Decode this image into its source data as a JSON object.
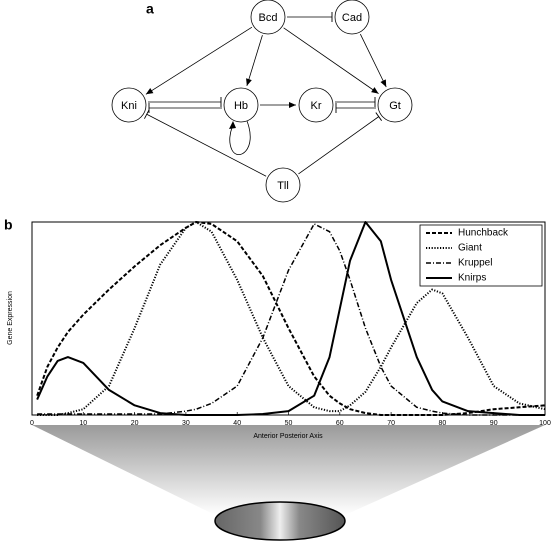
{
  "diagram": {
    "label": "a",
    "nodes": [
      {
        "label": "Bcd"
      },
      {
        "label": "Cad"
      },
      {
        "label": "Kni"
      },
      {
        "label": "Hb"
      },
      {
        "label": "Kr"
      },
      {
        "label": "Gt"
      },
      {
        "label": "Tll"
      }
    ]
  },
  "chart_data": {
    "type": "line",
    "panel_label": "b",
    "x_label": "Anterior Posterior Axis",
    "y_label": "Gene Expression",
    "x": [
      1,
      3,
      5,
      7,
      10,
      15,
      20,
      25,
      30,
      32,
      35,
      40,
      45,
      50,
      55,
      58,
      60,
      62,
      65,
      68,
      70,
      75,
      78,
      80,
      85,
      90,
      95,
      100
    ],
    "series": [
      {
        "name": "Hunchback",
        "color": "#000000",
        "linestyle": "dashed",
        "values": [
          0.1,
          0.25,
          0.35,
          0.43,
          0.52,
          0.65,
          0.77,
          0.88,
          0.97,
          1.0,
          0.99,
          0.9,
          0.72,
          0.45,
          0.2,
          0.1,
          0.06,
          0.03,
          0.01,
          0,
          0,
          0,
          0,
          0,
          0.01,
          0.03,
          0.04,
          0.05
        ]
      },
      {
        "name": "Giant",
        "color": "#000000",
        "linestyle": "dotted",
        "values": [
          0,
          0,
          0,
          0.01,
          0.03,
          0.15,
          0.45,
          0.78,
          0.97,
          1.0,
          0.95,
          0.7,
          0.4,
          0.15,
          0.04,
          0.02,
          0.02,
          0.05,
          0.12,
          0.25,
          0.35,
          0.58,
          0.65,
          0.63,
          0.4,
          0.15,
          0.06,
          0.03
        ]
      },
      {
        "name": "Kruppel",
        "color": "#000000",
        "linestyle": "dashdot",
        "values": [
          0.005,
          0.005,
          0.005,
          0.005,
          0.005,
          0.005,
          0.005,
          0.005,
          0.02,
          0.03,
          0.06,
          0.15,
          0.4,
          0.75,
          0.99,
          0.95,
          0.85,
          0.7,
          0.45,
          0.25,
          0.15,
          0.04,
          0.02,
          0.01,
          0,
          0,
          0,
          0
        ]
      },
      {
        "name": "Knirps",
        "color": "#000000",
        "linestyle": "solid",
        "values": [
          0.08,
          0.2,
          0.28,
          0.3,
          0.27,
          0.13,
          0.05,
          0.01,
          0,
          0,
          0,
          0,
          0.005,
          0.02,
          0.1,
          0.3,
          0.55,
          0.8,
          1.0,
          0.9,
          0.7,
          0.3,
          0.13,
          0.07,
          0.02,
          0.01,
          0,
          0
        ]
      }
    ],
    "xlim": [
      0,
      100
    ],
    "xticks": [
      0,
      10,
      20,
      30,
      40,
      50,
      60,
      70,
      80,
      90,
      100
    ],
    "ylim": [
      0,
      1
    ],
    "legend": "upper right"
  }
}
